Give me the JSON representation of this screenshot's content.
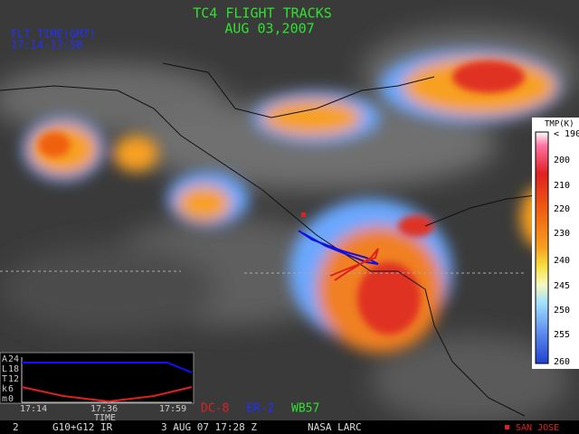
{
  "header": {
    "title": "TC4 FLIGHT TRACKS",
    "date": "AUG 03,2007",
    "flt_label": "FLT TIME(GMT)",
    "flt_range": "17:14-17:58"
  },
  "colorbar": {
    "title": "TMP(K)",
    "labels": [
      "< 190",
      "200",
      "210",
      "220",
      "230",
      "240",
      "245",
      "250",
      "255",
      "260"
    ]
  },
  "altitude_inset": {
    "letters": [
      "A",
      "L",
      "T",
      "k",
      "m"
    ],
    "ticks": [
      "24",
      "18",
      "12",
      "6",
      "0"
    ],
    "times": [
      "17:14",
      "17:36",
      "17:59"
    ],
    "x_label": "TIME"
  },
  "legend": [
    "DC-8",
    "ER-2",
    "WB57"
  ],
  "footer": {
    "frame": "2",
    "sensor": "G10+G12 IR",
    "datetime": "3 AUG 07 17:28 Z",
    "source": "NASA LARC",
    "marker": "SAN JOSE"
  }
}
